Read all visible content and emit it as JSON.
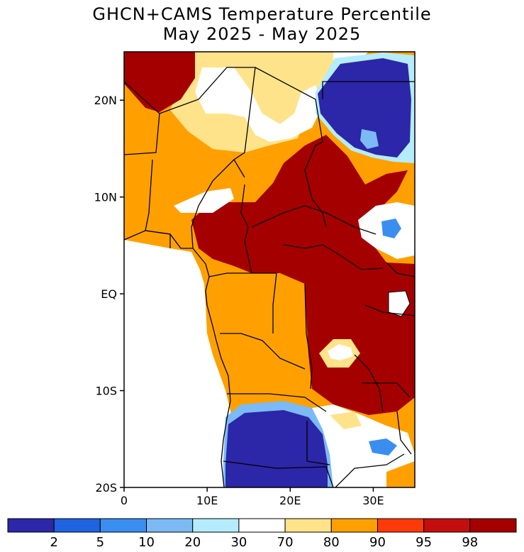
{
  "title": {
    "line1": "GHCN+CAMS Temperature Percentile",
    "line2": "May 2025 - May 2025"
  },
  "axes": {
    "lat_labels": [
      "20N",
      "10N",
      "EQ",
      "10S",
      "20S"
    ],
    "lon_labels": [
      "0",
      "10E",
      "20E",
      "30E"
    ]
  },
  "colorbar": {
    "colors": [
      "#2c26a8",
      "#1f63e0",
      "#3a8ef0",
      "#7bbaf5",
      "#b4ecfc",
      "#ffffff",
      "#ffe38a",
      "#ffa000",
      "#ff3a0a",
      "#c40e0e",
      "#a50000"
    ],
    "labels": [
      "2",
      "5",
      "10",
      "20",
      "30",
      "70",
      "80",
      "90",
      "95",
      "98"
    ]
  },
  "map": {
    "extent": {
      "lon_min": 0,
      "lon_max": 35,
      "lat_min": -20,
      "lat_max": 25
    },
    "colors": {
      "very_below": "#2c26a8",
      "below_light": "#3a8ef0",
      "near_normal": "#ffffff",
      "above_light": "#ffe38a",
      "above": "#ffa000",
      "much_above": "#a50000",
      "ocean": "#ffffff",
      "border": "#000000"
    }
  }
}
